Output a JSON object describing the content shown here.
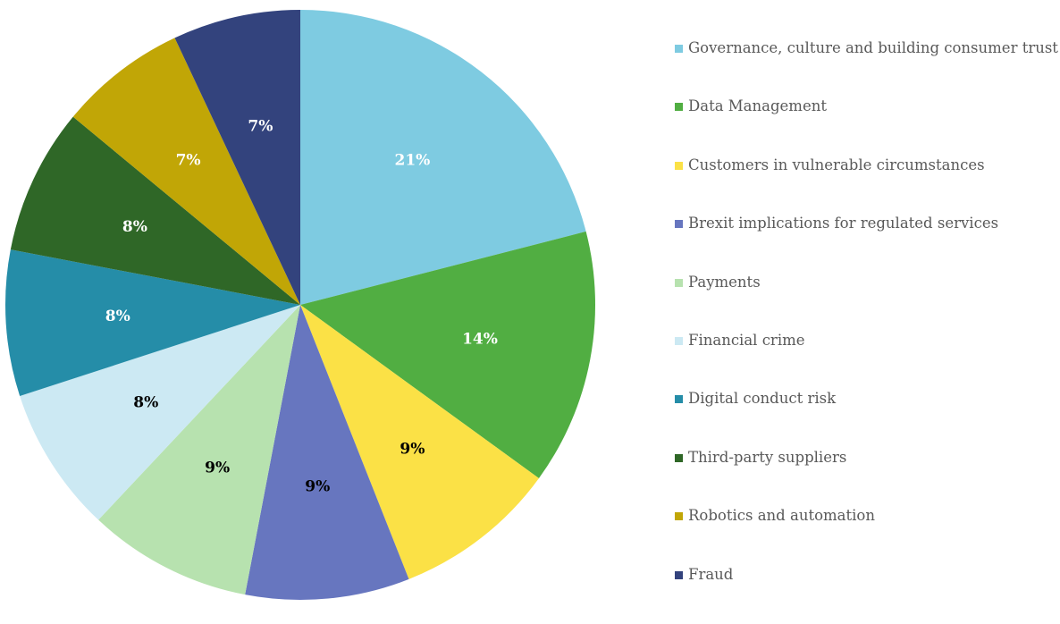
{
  "chart_data": {
    "type": "pie",
    "title": "",
    "legend_position": "right",
    "slices": [
      {
        "label": "Governance, culture and building consumer trust",
        "value": 21,
        "display": "21%",
        "color": "#7ECBE1",
        "text_color": "#ffffff"
      },
      {
        "label": "Data Management",
        "value": 14,
        "display": "14%",
        "color": "#51AE42",
        "text_color": "#ffffff"
      },
      {
        "label": "Customers in vulnerable circumstances",
        "value": 9,
        "display": "9%",
        "color": "#FBE146",
        "text_color": "#000000"
      },
      {
        "label": "Brexit implications for regulated services",
        "value": 9,
        "display": "9%",
        "color": "#6776BF",
        "text_color": "#000000"
      },
      {
        "label": "Payments",
        "value": 9,
        "display": "9%",
        "color": "#B7E2AF",
        "text_color": "#000000"
      },
      {
        "label": "Financial crime",
        "value": 8,
        "display": "8%",
        "color": "#CCE9F3",
        "text_color": "#000000"
      },
      {
        "label": "Digital conduct risk",
        "value": 8,
        "display": "8%",
        "color": "#258DA8",
        "text_color": "#ffffff"
      },
      {
        "label": "Third-party suppliers",
        "value": 8,
        "display": "8%",
        "color": "#2F6727",
        "text_color": "#ffffff"
      },
      {
        "label": "Robotics and automation",
        "value": 7,
        "display": "7%",
        "color": "#C1A606",
        "text_color": "#ffffff"
      },
      {
        "label": "Fraud",
        "value": 7,
        "display": "7%",
        "color": "#33437D",
        "text_color": "#ffffff"
      }
    ]
  }
}
